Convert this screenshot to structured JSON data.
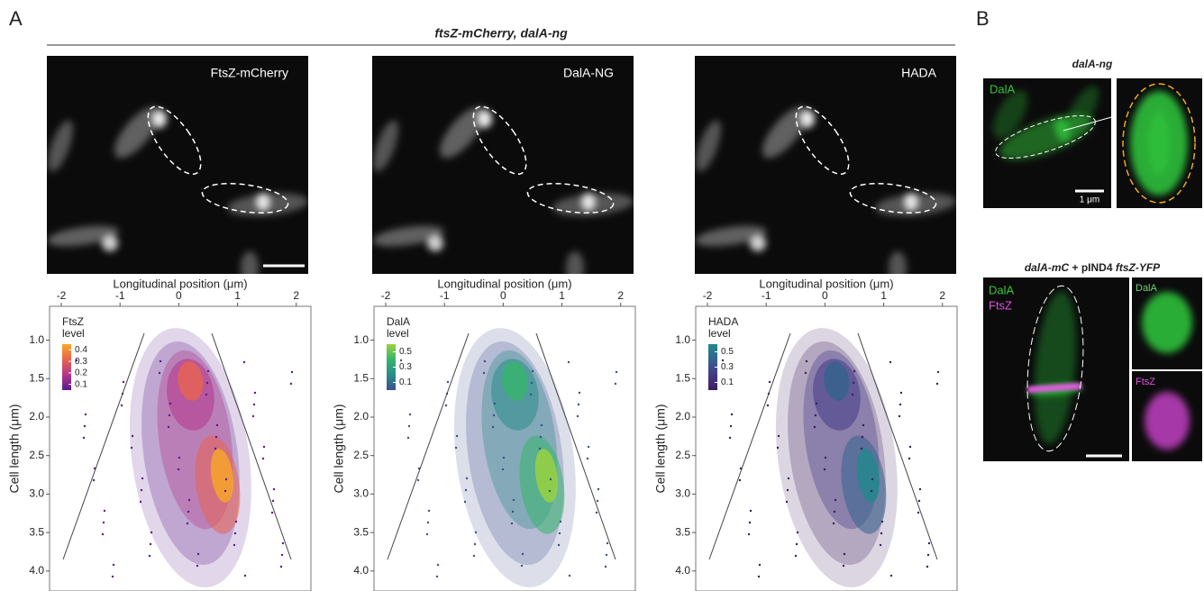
{
  "panel_a": {
    "label": "A",
    "title": "ftsZ-mCherry, dalA-ng",
    "images": [
      "FtsZ-mCherry",
      "DalA-NG",
      "HADA"
    ],
    "plots": [
      {
        "x_label": "Longitudinal position (μm)",
        "y_label": "Cell length (μm)",
        "xlim": [
          -2.2,
          2.25
        ],
        "xticks": [
          -2,
          -1,
          0,
          1,
          2
        ],
        "ylim": [
          0.56,
          4.26
        ],
        "yticks": [
          {
            "value": 1,
            "label": "1.0"
          },
          1.5,
          {
            "value": 2,
            "label": "2.0"
          },
          2.5,
          {
            "value": 3,
            "label": "3.0"
          },
          3.5,
          {
            "value": 4,
            "label": "4.0"
          }
        ],
        "legend_title": [
          "FtsZ",
          "level"
        ],
        "legend_lim": [
          0.05,
          0.45
        ],
        "legend_ticks": [
          0.4,
          0.3,
          0.2,
          0.1
        ],
        "colors": [
          "#5c1a8c",
          "#b3368a",
          "#e8634f",
          "#f9a825"
        ]
      },
      {
        "x_label": "Longitudinal position (μm)",
        "y_label": "Cell length (μm)",
        "xlim": [
          -2.2,
          2.25
        ],
        "xticks": [
          -2,
          -1,
          0,
          1,
          2
        ],
        "ylim": [
          0.56,
          4.26
        ],
        "yticks": [
          {
            "value": 1,
            "label": "1.0"
          },
          1.5,
          {
            "value": 2,
            "label": "2.0"
          },
          2.5,
          {
            "value": 3,
            "label": "3.0"
          },
          3.5,
          {
            "value": 4,
            "label": "4.0"
          }
        ],
        "legend_title": [
          "DalA",
          "level"
        ],
        "legend_lim": [
          0.0,
          0.6
        ],
        "legend_ticks": [
          0.5,
          0.3,
          0.1
        ],
        "colors": [
          "#3b4f8c",
          "#2a8c8c",
          "#37b46c",
          "#9bd33c"
        ]
      },
      {
        "x_label": "Longitudinal position (μm)",
        "y_label": "Cell length (μm)",
        "xlim": [
          -2.2,
          2.25
        ],
        "xticks": [
          -2,
          -1,
          0,
          1,
          2
        ],
        "ylim": [
          0.56,
          4.26
        ],
        "yticks": [
          {
            "value": 1,
            "label": "1.0"
          },
          1.5,
          {
            "value": 2,
            "label": "2.0"
          },
          2.5,
          {
            "value": 3,
            "label": "3.0"
          },
          3.5,
          {
            "value": 4,
            "label": "4.0"
          }
        ],
        "legend_title": [
          "HADA",
          "level"
        ],
        "legend_lim": [
          0.0,
          0.6
        ],
        "legend_ticks": [
          0.5,
          0.3,
          0.1
        ],
        "colors": [
          "#3d1c5c",
          "#433a86",
          "#33638d",
          "#1f8a8c"
        ]
      }
    ]
  },
  "panel_b": {
    "label": "B",
    "top_title": "dalA-ng",
    "top_channel": "DalA",
    "scale_bar": "1 μm",
    "bottom_title_parts": [
      "dalA-mC",
      " + pIND4 ",
      "ftsZ-YFP"
    ],
    "bottom_channels": [
      "DalA",
      "FtsZ"
    ],
    "inset_labels": [
      "DalA",
      "FtsZ"
    ]
  }
}
